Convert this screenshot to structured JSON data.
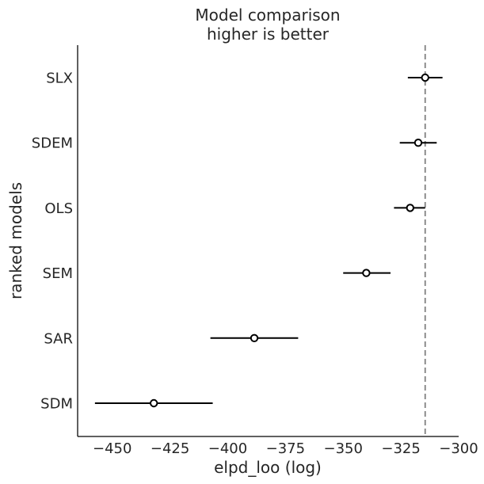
{
  "chart_data": {
    "type": "scatter",
    "title": "Model comparison",
    "subtitle": "higher is better",
    "xlabel": "elpd_loo (log)",
    "ylabel": "ranked models",
    "xlim": [
      -465,
      -300
    ],
    "xticks": [
      -450,
      -425,
      -400,
      -375,
      -350,
      -325,
      -300
    ],
    "xtick_labels": [
      "−450",
      "−425",
      "−400",
      "−375",
      "−350",
      "−325",
      "−300"
    ],
    "reference_line": -314.5,
    "models": [
      {
        "name": "SLX",
        "elpd": -314.5,
        "lower": -322.0,
        "upper": -307.0
      },
      {
        "name": "SDEM",
        "elpd": -317.5,
        "lower": -325.5,
        "upper": -309.5
      },
      {
        "name": "OLS",
        "elpd": -321.0,
        "lower": -328.0,
        "upper": -314.5
      },
      {
        "name": "SEM",
        "elpd": -340.0,
        "lower": -350.0,
        "upper": -329.5
      },
      {
        "name": "SAR",
        "elpd": -388.5,
        "lower": -407.5,
        "upper": -369.5
      },
      {
        "name": "SDM",
        "elpd": -432.0,
        "lower": -457.5,
        "upper": -406.5
      }
    ],
    "colors": {
      "axis": "#000000",
      "text": "#262626",
      "interval": "#000000",
      "marker_fill": "#ffffff",
      "reference_line": "#808080"
    },
    "grid": false,
    "legend": "none"
  }
}
